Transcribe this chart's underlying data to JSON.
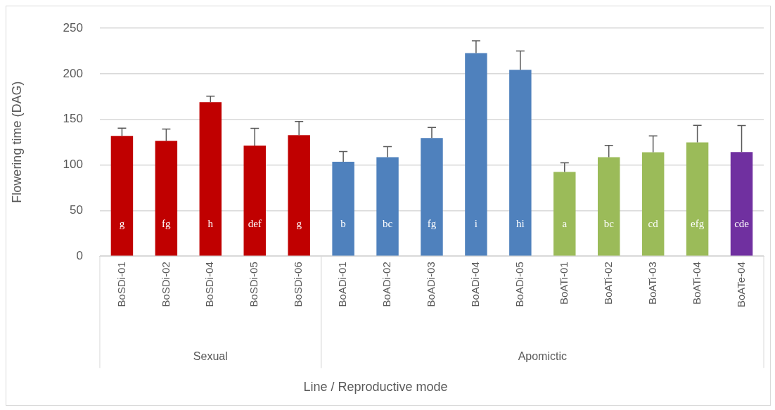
{
  "chart_data": {
    "type": "bar",
    "ylabel": "Flowering time (DAG)",
    "annotations": [
      "Sexual",
      "Apomictic",
      "Line / Reproductive mode"
    ],
    "categories": [
      "BoSDi-01",
      "BoSDi-02",
      "BoSDi-04",
      "BoSDi-05",
      "BoSDi-06",
      "BoADi-01",
      "BoADi-02",
      "BoADi-03",
      "BoADi-04",
      "BoADi-05",
      "BoATi-01",
      "BoATi-02",
      "BoATi-03",
      "BoATi-04",
      "BoATe-04"
    ],
    "series": [
      {
        "colors": [
          "#c00000",
          "#c00000",
          "#c00000",
          "#c00000",
          "#c00000",
          null,
          null,
          null,
          null,
          null,
          null,
          null,
          null,
          null,
          null
        ],
        "values": [
          131.8,
          126.4,
          168.9,
          121.2,
          132.6,
          null,
          null,
          null,
          null,
          null,
          null,
          null,
          null,
          null,
          null
        ],
        "errors": [
          [
            131.8,
            140.4
          ],
          [
            126.4,
            139.4
          ],
          [
            168.9,
            175.4
          ],
          [
            121.2,
            140.2
          ],
          [
            132.6,
            147.6
          ],
          null,
          null,
          null,
          null,
          null,
          null,
          null,
          null,
          null,
          null
        ],
        "value_labels": [
          "g",
          "fg",
          "h",
          "def",
          "g",
          null,
          null,
          null,
          null,
          null,
          null,
          null,
          null,
          null,
          null
        ]
      },
      {
        "colors": [
          null,
          null,
          null,
          null,
          null,
          "#4f81bd",
          "#4f81bd",
          "#4f81bd",
          "#4f81bd",
          "#4f81bd",
          "#9bbb59",
          "#9bbb59",
          "#9bbb59",
          "#9bbb59",
          "#7030a0"
        ],
        "values": [
          null,
          null,
          null,
          null,
          null,
          103.6,
          108.5,
          129.5,
          222.6,
          204.4,
          92.4,
          108.5,
          113.9,
          124.8,
          114.2
        ],
        "errors": [
          null,
          null,
          null,
          null,
          null,
          [
            103.6,
            114.6
          ],
          [
            108.5,
            120
          ],
          [
            129.5,
            141
          ],
          [
            222.6,
            236.1
          ],
          [
            204.4,
            224.9
          ],
          [
            92.4,
            102.4
          ],
          [
            108.5,
            121.5
          ],
          [
            113.9,
            131.9
          ],
          [
            124.8,
            143.5
          ],
          [
            114.2,
            143.2
          ]
        ],
        "value_labels": [
          null,
          null,
          null,
          null,
          null,
          "b",
          "bc",
          "fg",
          "i",
          "hi",
          "a",
          "bc",
          "cd",
          "efg",
          "cde"
        ]
      }
    ],
    "ylim": [
      0,
      250
    ],
    "yticks": [
      0,
      50,
      100,
      150,
      200,
      250
    ],
    "grid": "y"
  }
}
